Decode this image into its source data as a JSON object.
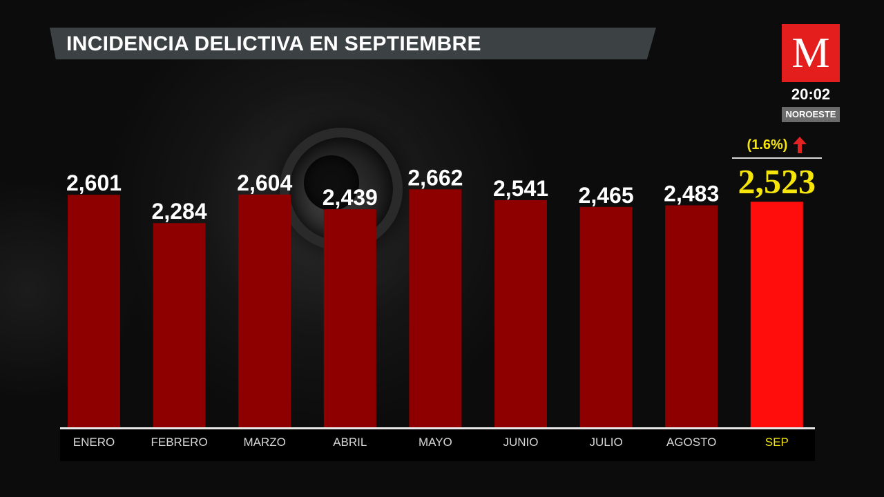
{
  "title": "INCIDENCIA DELICTIVA EN SEPTIEMBRE",
  "logo": {
    "letter": "M",
    "icon": "milenio-m-logo"
  },
  "clock": "20:02",
  "region": "NOROESTE",
  "highlight": {
    "change_label": "(1.6%)",
    "direction": "up",
    "value_label": "2,523"
  },
  "colors": {
    "bar": "#8e0000",
    "highlight_bar": "#ff0d0d",
    "label": "#ffffff",
    "highlight_label": "#f5e50a",
    "category": "#d8d8d8",
    "arrow": "#e32222"
  },
  "chart_data": {
    "type": "bar",
    "title": "INCIDENCIA DELICTIVA EN SEPTIEMBRE",
    "xlabel": "",
    "ylabel": "",
    "categories": [
      "ENERO",
      "FEBRERO",
      "MARZO",
      "ABRIL",
      "MAYO",
      "JUNIO",
      "JULIO",
      "AGOSTO",
      "SEP"
    ],
    "values": [
      2601,
      2284,
      2604,
      2439,
      2662,
      2541,
      2465,
      2483,
      2523
    ],
    "value_labels": [
      "2,601",
      "2,284",
      "2,604",
      "2,439",
      "2,662",
      "2,541",
      "2,465",
      "2,483",
      "2,523"
    ],
    "highlight_index": 8,
    "grid": false,
    "legend": "none"
  }
}
